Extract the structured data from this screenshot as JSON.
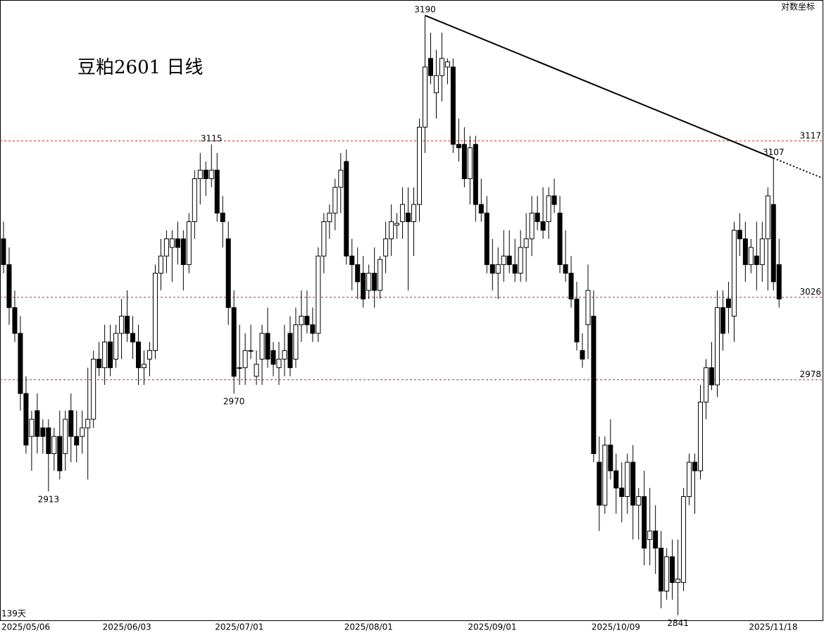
{
  "chart_data": {
    "type": "candlestick",
    "title": "豆粕2601 日线",
    "scale_note": "对数坐标",
    "count_note": "139天",
    "ylim": [
      2838,
      3199
    ],
    "levels": [
      3117,
      3026,
      2978
    ],
    "level_color": "#cc2222",
    "peak_labels": [
      3190,
      3115,
      3107
    ],
    "trough_labels": [
      2970,
      2913,
      2841
    ],
    "categories": [
      "2025/05/06",
      null,
      null,
      null,
      null,
      null,
      null,
      null,
      null,
      null,
      null,
      null,
      null,
      null,
      null,
      null,
      null,
      null,
      "2025/06/03",
      null,
      null,
      null,
      null,
      null,
      null,
      null,
      null,
      null,
      null,
      null,
      null,
      null,
      null,
      null,
      null,
      null,
      null,
      null,
      "2025/07/01",
      null,
      null,
      null,
      null,
      null,
      null,
      null,
      null,
      null,
      null,
      null,
      null,
      null,
      null,
      null,
      null,
      null,
      null,
      null,
      null,
      null,
      null,
      "2025/08/01",
      null,
      null,
      null,
      null,
      null,
      null,
      null,
      null,
      null,
      null,
      null,
      null,
      null,
      null,
      null,
      null,
      null,
      null,
      null,
      null,
      null,
      "2025/09/01",
      null,
      null,
      null,
      null,
      null,
      null,
      null,
      null,
      null,
      null,
      null,
      null,
      null,
      null,
      null,
      null,
      null,
      null,
      null,
      null,
      null,
      "2025/10/09",
      null,
      null,
      null,
      null,
      null,
      null,
      null,
      null,
      null,
      null,
      null,
      null,
      null,
      null,
      null,
      null,
      null,
      null,
      null,
      null,
      null,
      null,
      null,
      null,
      null,
      null,
      null,
      "2025/11/18",
      null,
      null,
      null,
      null
    ],
    "ohlc": [
      [
        3060,
        3070,
        3040,
        3045
      ],
      [
        3045,
        3055,
        3010,
        3020
      ],
      [
        3020,
        3030,
        3000,
        3005
      ],
      [
        3005,
        3015,
        2960,
        2970
      ],
      [
        2970,
        2980,
        2935,
        2940
      ],
      [
        2945,
        2960,
        2925,
        2955
      ],
      [
        2960,
        2970,
        2935,
        2945
      ],
      [
        2950,
        2955,
        2935,
        2945
      ],
      [
        2950,
        2955,
        2913,
        2935
      ],
      [
        2935,
        2950,
        2925,
        2945
      ],
      [
        2945,
        2960,
        2920,
        2925
      ],
      [
        2935,
        2960,
        2925,
        2955
      ],
      [
        2960,
        2970,
        2930,
        2945
      ],
      [
        2945,
        2960,
        2930,
        2940
      ],
      [
        2945,
        2960,
        2935,
        2950
      ],
      [
        2950,
        2985,
        2920,
        2955
      ],
      [
        2955,
        2995,
        2950,
        2990
      ],
      [
        2990,
        3000,
        2980,
        2985
      ],
      [
        2985,
        3010,
        2975,
        3000
      ],
      [
        3000,
        3010,
        2980,
        2985
      ],
      [
        2990,
        3010,
        2985,
        3005
      ],
      [
        3005,
        3025,
        2990,
        3015
      ],
      [
        3015,
        3030,
        3000,
        3005
      ],
      [
        3005,
        3015,
        2990,
        3000
      ],
      [
        3000,
        3010,
        2975,
        2985
      ],
      [
        2985,
        2995,
        2975,
        2987
      ],
      [
        2990,
        3000,
        2980,
        2995
      ],
      [
        2995,
        3045,
        2990,
        3040
      ],
      [
        3040,
        3060,
        3030,
        3050
      ],
      [
        3050,
        3065,
        3040,
        3060
      ],
      [
        3055,
        3065,
        3035,
        3060
      ],
      [
        3060,
        3070,
        3045,
        3055
      ],
      [
        3060,
        3065,
        3030,
        3045
      ],
      [
        3045,
        3075,
        3040,
        3070
      ],
      [
        3070,
        3100,
        3060,
        3095
      ],
      [
        3095,
        3110,
        3080,
        3100
      ],
      [
        3100,
        3105,
        3085,
        3095
      ],
      [
        3095,
        3115,
        3090,
        3100
      ],
      [
        3100,
        3110,
        3070,
        3075
      ],
      [
        3075,
        3085,
        3055,
        3070
      ],
      [
        3060,
        3070,
        3010,
        3020
      ],
      [
        3020,
        3030,
        2970,
        2980
      ],
      [
        2985,
        3010,
        2975,
        2985
      ],
      [
        2985,
        3005,
        2975,
        2995
      ],
      [
        2995,
        3010,
        2990,
        2995
      ],
      [
        2980,
        2995,
        2975,
        2987
      ],
      [
        2990,
        3010,
        2975,
        3005
      ],
      [
        3005,
        3020,
        2985,
        2990
      ],
      [
        2995,
        3000,
        2980,
        2987
      ],
      [
        2985,
        3000,
        2975,
        2990
      ],
      [
        2990,
        3010,
        2980,
        2995
      ],
      [
        3005,
        3015,
        2980,
        2985
      ],
      [
        2990,
        3020,
        2985,
        3010
      ],
      [
        3010,
        3030,
        3000,
        3015
      ],
      [
        3015,
        3030,
        3005,
        3010
      ],
      [
        3010,
        3020,
        3000,
        3005
      ],
      [
        3005,
        3055,
        3000,
        3050
      ],
      [
        3050,
        3075,
        3040,
        3070
      ],
      [
        3070,
        3080,
        3060,
        3075
      ],
      [
        3075,
        3095,
        3065,
        3090
      ],
      [
        3090,
        3110,
        3075,
        3100
      ],
      [
        3105,
        3112,
        3045,
        3050
      ],
      [
        3050,
        3060,
        3030,
        3045
      ],
      [
        3045,
        3055,
        3025,
        3035
      ],
      [
        3040,
        3050,
        3020,
        3025
      ],
      [
        3030,
        3045,
        3025,
        3040
      ],
      [
        3040,
        3055,
        3020,
        3030
      ],
      [
        3030,
        3050,
        3025,
        3048
      ],
      [
        3050,
        3070,
        3040,
        3060
      ],
      [
        3060,
        3080,
        3050,
        3070
      ],
      [
        3068,
        3075,
        3060,
        3069
      ],
      [
        3070,
        3090,
        3060,
        3080
      ],
      [
        3075,
        3090,
        3030,
        3070
      ],
      [
        3070,
        3090,
        3050,
        3080
      ],
      [
        3080,
        3130,
        3070,
        3125
      ],
      [
        3125,
        3190,
        3110,
        3160
      ],
      [
        3165,
        3180,
        3150,
        3155
      ],
      [
        3145,
        3170,
        3130,
        3155
      ],
      [
        3155,
        3180,
        3140,
        3165
      ],
      [
        3160,
        3165,
        3150,
        3163
      ],
      [
        3160,
        3165,
        3110,
        3115
      ],
      [
        3115,
        3130,
        3105,
        3113
      ],
      [
        3115,
        3125,
        3090,
        3095
      ],
      [
        3095,
        3120,
        3080,
        3113
      ],
      [
        3115,
        3120,
        3070,
        3080
      ],
      [
        3080,
        3095,
        3070,
        3075
      ],
      [
        3075,
        3085,
        3040,
        3045
      ],
      [
        3045,
        3060,
        3030,
        3040
      ],
      [
        3040,
        3055,
        3025,
        3045
      ],
      [
        3045,
        3065,
        3035,
        3050
      ],
      [
        3050,
        3065,
        3040,
        3045
      ],
      [
        3045,
        3060,
        3035,
        3040
      ],
      [
        3040,
        3065,
        3035,
        3055
      ],
      [
        3055,
        3075,
        3035,
        3060
      ],
      [
        3060,
        3085,
        3050,
        3075
      ],
      [
        3075,
        3085,
        3065,
        3070
      ],
      [
        3070,
        3090,
        3060,
        3065
      ],
      [
        3070,
        3090,
        3060,
        3085
      ],
      [
        3085,
        3095,
        3075,
        3080
      ],
      [
        3075,
        3085,
        3040,
        3045
      ],
      [
        3045,
        3065,
        3035,
        3040
      ],
      [
        3040,
        3050,
        3020,
        3025
      ],
      [
        3025,
        3035,
        2995,
        3000
      ],
      [
        2995,
        3005,
        2985,
        2990
      ],
      [
        3010,
        3045,
        2990,
        3030
      ],
      [
        3015,
        3030,
        2930,
        2935
      ],
      [
        2930,
        2945,
        2890,
        2905
      ],
      [
        2905,
        2945,
        2900,
        2940
      ],
      [
        2940,
        2955,
        2920,
        2925
      ],
      [
        2925,
        2935,
        2900,
        2915
      ],
      [
        2915,
        2930,
        2895,
        2910
      ],
      [
        2910,
        2935,
        2900,
        2930
      ],
      [
        2930,
        2940,
        2885,
        2905
      ],
      [
        2905,
        2915,
        2885,
        2910
      ],
      [
        2910,
        2925,
        2870,
        2880
      ],
      [
        2885,
        2915,
        2870,
        2890
      ],
      [
        2890,
        2905,
        2865,
        2880
      ],
      [
        2880,
        2890,
        2845,
        2855
      ],
      [
        2855,
        2880,
        2850,
        2875
      ],
      [
        2875,
        2885,
        2850,
        2860
      ],
      [
        2860,
        2885,
        2841,
        2862
      ],
      [
        2860,
        2915,
        2855,
        2910
      ],
      [
        2910,
        2935,
        2905,
        2930
      ],
      [
        2930,
        2935,
        2900,
        2925
      ],
      [
        2925,
        2975,
        2920,
        2965
      ],
      [
        2965,
        2990,
        2955,
        2985
      ],
      [
        2985,
        3000,
        2972,
        2975
      ],
      [
        2975,
        3030,
        2968,
        3020
      ],
      [
        3020,
        3030,
        2995,
        3005
      ],
      [
        3025,
        3035,
        3005,
        3020
      ],
      [
        3015,
        3070,
        3000,
        3065
      ],
      [
        3065,
        3075,
        3050,
        3060
      ],
      [
        3060,
        3070,
        3035,
        3045
      ],
      [
        3045,
        3060,
        3040,
        3055
      ],
      [
        3050,
        3070,
        3030,
        3045
      ],
      [
        3045,
        3070,
        3035,
        3060
      ],
      [
        3060,
        3090,
        3030,
        3085
      ],
      [
        3080,
        3107,
        3030,
        3035
      ],
      [
        3045,
        3060,
        3020,
        3025
      ]
    ]
  }
}
